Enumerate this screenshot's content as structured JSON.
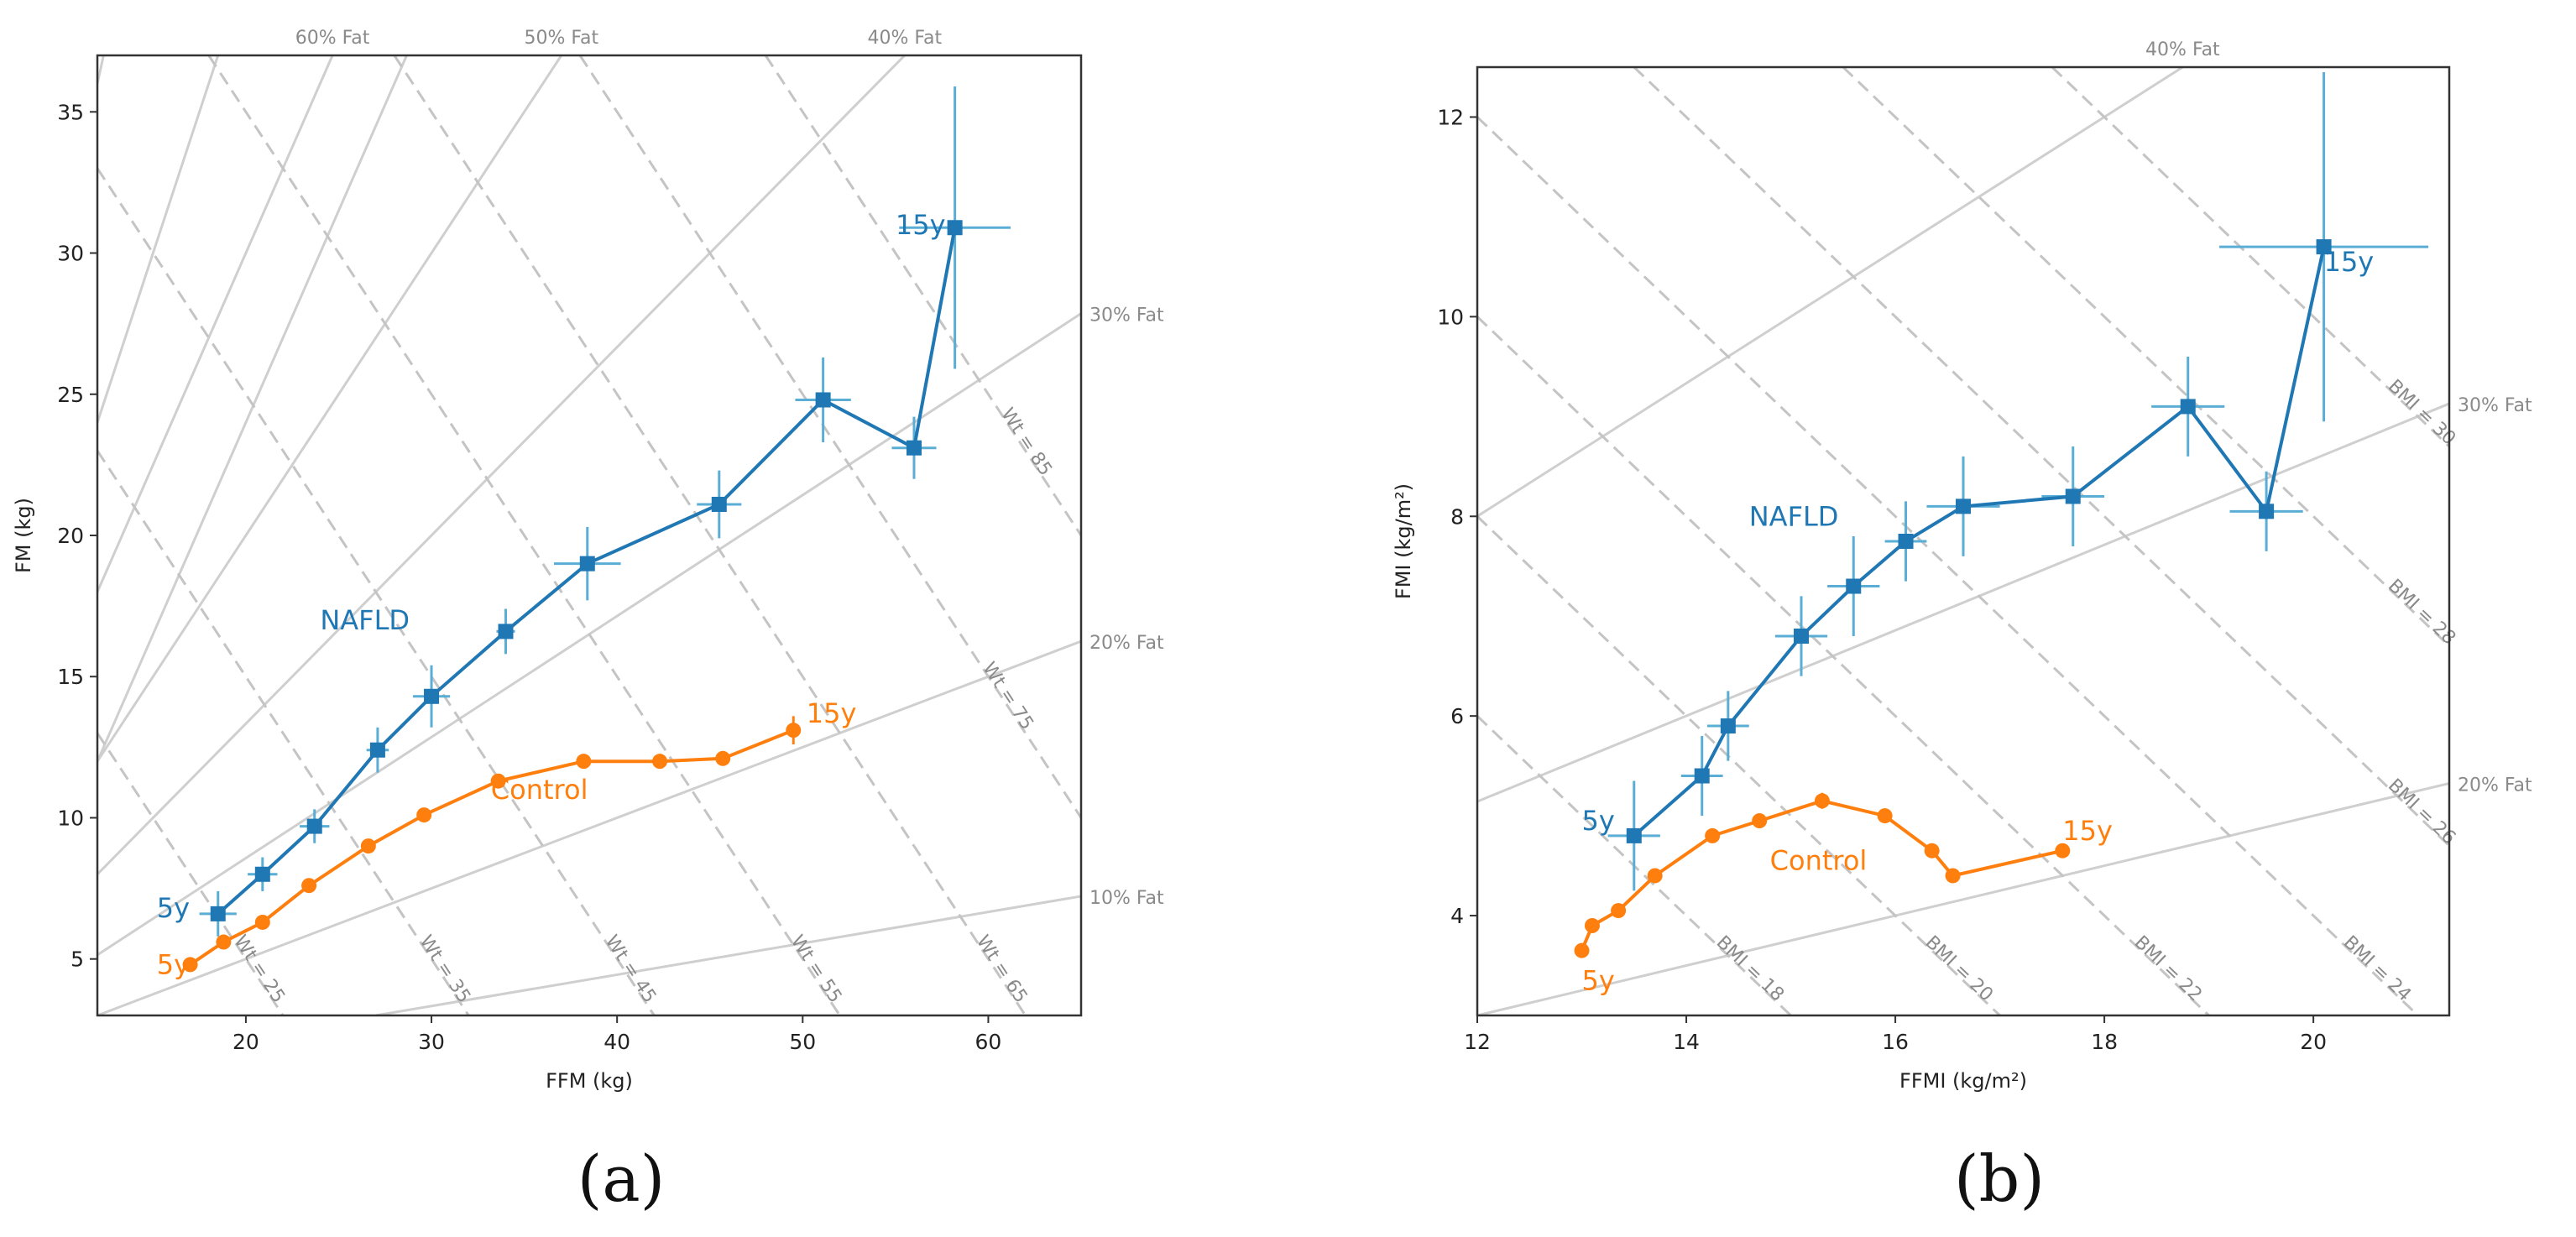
{
  "colors": {
    "nafld": "#1f77b4",
    "nafld_err": "#5aaed6",
    "control": "#ff7f0e",
    "guide": "#cfcfcf",
    "guide_dash": "#c4c4c4",
    "guide_text": "#8a8a8a",
    "axis": "#333333"
  },
  "captions": [
    "(a)",
    "(b)"
  ],
  "chart_data": [
    {
      "type": "line",
      "panel": "a",
      "xlabel": "FFM (kg)",
      "ylabel": "FM (kg)",
      "xlim": [
        12,
        65
      ],
      "ylim": [
        3,
        37
      ],
      "xticks": [
        20,
        30,
        40,
        50,
        60
      ],
      "yticks": [
        5,
        10,
        15,
        20,
        25,
        30,
        35
      ],
      "series": [
        {
          "name": "NAFLD",
          "color_key": "nafld",
          "marker": "square",
          "label": "NAFLD",
          "label_at": [
            24.0,
            17.0
          ],
          "start_label": "5y",
          "start_label_at": [
            15.2,
            6.8
          ],
          "end_label": "15y",
          "end_label_at": [
            55.0,
            31.0
          ],
          "points": [
            {
              "x": 18.5,
              "y": 6.6,
              "xerr": 1.0,
              "yerr": 0.8
            },
            {
              "x": 20.9,
              "y": 8.0,
              "xerr": 0.8,
              "yerr": 0.6
            },
            {
              "x": 23.7,
              "y": 9.7,
              "xerr": 0.8,
              "yerr": 0.6
            },
            {
              "x": 27.1,
              "y": 12.4,
              "xerr": 0.6,
              "yerr": 0.8
            },
            {
              "x": 30.0,
              "y": 14.3,
              "xerr": 1.0,
              "yerr": 1.1
            },
            {
              "x": 34.0,
              "y": 16.6,
              "xerr": 0.5,
              "yerr": 0.8
            },
            {
              "x": 38.4,
              "y": 19.0,
              "xerr": 1.8,
              "yerr": 1.3
            },
            {
              "x": 45.5,
              "y": 21.1,
              "xerr": 1.2,
              "yerr": 1.2
            },
            {
              "x": 51.1,
              "y": 24.8,
              "xerr": 1.5,
              "yerr": 1.5
            },
            {
              "x": 56.0,
              "y": 23.1,
              "xerr": 1.2,
              "yerr": 1.1
            },
            {
              "x": 58.2,
              "y": 30.9,
              "xerr": 3.0,
              "yerr": 5.0
            }
          ]
        },
        {
          "name": "Control",
          "color_key": "control",
          "marker": "circle",
          "label": "Control",
          "label_at": [
            33.2,
            11.0
          ],
          "start_label": "5y",
          "start_label_at": [
            15.2,
            4.8
          ],
          "end_label": "15y",
          "end_label_at": [
            50.2,
            13.7
          ],
          "points": [
            {
              "x": 17.0,
              "y": 4.8,
              "xerr": 0,
              "yerr": 0
            },
            {
              "x": 18.8,
              "y": 5.6,
              "xerr": 0,
              "yerr": 0
            },
            {
              "x": 20.9,
              "y": 6.3,
              "xerr": 0,
              "yerr": 0
            },
            {
              "x": 23.4,
              "y": 7.6,
              "xerr": 0,
              "yerr": 0
            },
            {
              "x": 26.6,
              "y": 9.0,
              "xerr": 0,
              "yerr": 0
            },
            {
              "x": 29.6,
              "y": 10.1,
              "xerr": 0,
              "yerr": 0
            },
            {
              "x": 33.6,
              "y": 11.3,
              "xerr": 0,
              "yerr": 0
            },
            {
              "x": 38.2,
              "y": 12.0,
              "xerr": 0,
              "yerr": 0
            },
            {
              "x": 42.3,
              "y": 12.0,
              "xerr": 0,
              "yerr": 0
            },
            {
              "x": 45.7,
              "y": 12.1,
              "xerr": 0,
              "yerr": 0
            },
            {
              "x": 49.5,
              "y": 13.1,
              "xerr": 0,
              "yerr": 0.5
            }
          ]
        }
      ],
      "fat_lines": [
        {
          "label": "60% Fat",
          "ratio": 1.5,
          "label_placement": "top"
        },
        {
          "label": "50% Fat",
          "ratio": 1.0,
          "label_placement": "top"
        },
        {
          "label": "40% Fat",
          "ratio": 0.6667,
          "label_placement": "top"
        },
        {
          "label": "30% Fat",
          "ratio": 0.4286,
          "label_placement": "right"
        },
        {
          "label": "20% Fat",
          "ratio": 0.25,
          "label_placement": "right"
        },
        {
          "label": "10% Fat",
          "ratio": 0.1111,
          "label_placement": "right"
        }
      ],
      "extra_guides": [
        {
          "ratio": 3.0,
          "intercept": 0
        },
        {
          "ratio": 2.0,
          "intercept": 0
        },
        {
          "ratio": 1.5,
          "intercept": -6
        }
      ],
      "weight_lines": [
        {
          "label": "Wt = 25",
          "value": 25,
          "label_at": 21.5
        },
        {
          "label": "Wt = 35",
          "value": 35,
          "label_at": 31.6
        },
        {
          "label": "Wt = 45",
          "value": 45,
          "label_at": 41.8
        },
        {
          "label": "Wt = 55",
          "value": 55,
          "label_at": 52.0
        },
        {
          "label": "Wt = 65",
          "value": 65,
          "label_at": 62.0
        },
        {
          "label": "Wt = 75",
          "value": 75,
          "label_at": 60.8
        },
        {
          "label": "Wt = 85",
          "value": 85,
          "label_at": 61.8
        }
      ]
    },
    {
      "type": "line",
      "panel": "b",
      "xlabel": "FFMI (kg/m²)",
      "ylabel": "FMI (kg/m²)",
      "xlim": [
        12,
        21.3
      ],
      "ylim": [
        3,
        12.5
      ],
      "xticks": [
        12,
        14,
        16,
        18,
        20
      ],
      "yticks": [
        4,
        6,
        8,
        10,
        12
      ],
      "series": [
        {
          "name": "NAFLD",
          "color_key": "nafld",
          "marker": "square",
          "label": "NAFLD",
          "label_at": [
            14.6,
            8.0
          ],
          "start_label": "5y",
          "start_label_at": [
            13.0,
            4.95
          ],
          "end_label": "15y",
          "end_label_at": [
            20.1,
            10.55
          ],
          "points": [
            {
              "x": 13.5,
              "y": 4.8,
              "xerr": 0.25,
              "yerr": 0.55
            },
            {
              "x": 14.15,
              "y": 5.4,
              "xerr": 0.2,
              "yerr": 0.4
            },
            {
              "x": 14.4,
              "y": 5.9,
              "xerr": 0.2,
              "yerr": 0.35
            },
            {
              "x": 15.1,
              "y": 6.8,
              "xerr": 0.25,
              "yerr": 0.4
            },
            {
              "x": 15.6,
              "y": 7.3,
              "xerr": 0.25,
              "yerr": 0.5
            },
            {
              "x": 16.1,
              "y": 7.75,
              "xerr": 0.2,
              "yerr": 0.4
            },
            {
              "x": 16.65,
              "y": 8.1,
              "xerr": 0.35,
              "yerr": 0.5
            },
            {
              "x": 17.7,
              "y": 8.2,
              "xerr": 0.3,
              "yerr": 0.5
            },
            {
              "x": 18.8,
              "y": 9.1,
              "xerr": 0.35,
              "yerr": 0.5
            },
            {
              "x": 19.55,
              "y": 8.05,
              "xerr": 0.35,
              "yerr": 0.4
            },
            {
              "x": 20.1,
              "y": 10.7,
              "xerr": 1.0,
              "yerr": 1.75
            }
          ]
        },
        {
          "name": "Control",
          "color_key": "control",
          "marker": "circle",
          "label": "Control",
          "label_at": [
            14.8,
            4.55
          ],
          "start_label": "5y",
          "start_label_at": [
            13.0,
            3.35
          ],
          "end_label": "15y",
          "end_label_at": [
            17.6,
            4.85
          ],
          "points": [
            {
              "x": 13.0,
              "y": 3.65,
              "xerr": 0,
              "yerr": 0
            },
            {
              "x": 13.1,
              "y": 3.9,
              "xerr": 0,
              "yerr": 0
            },
            {
              "x": 13.35,
              "y": 4.05,
              "xerr": 0,
              "yerr": 0
            },
            {
              "x": 13.7,
              "y": 4.4,
              "xerr": 0,
              "yerr": 0
            },
            {
              "x": 14.25,
              "y": 4.8,
              "xerr": 0,
              "yerr": 0
            },
            {
              "x": 14.7,
              "y": 4.95,
              "xerr": 0,
              "yerr": 0
            },
            {
              "x": 15.3,
              "y": 5.15,
              "xerr": 0,
              "yerr": 0.08
            },
            {
              "x": 15.9,
              "y": 5.0,
              "xerr": 0,
              "yerr": 0
            },
            {
              "x": 16.35,
              "y": 4.65,
              "xerr": 0,
              "yerr": 0
            },
            {
              "x": 16.55,
              "y": 4.4,
              "xerr": 0,
              "yerr": 0
            },
            {
              "x": 17.6,
              "y": 4.65,
              "xerr": 0,
              "yerr": 0
            }
          ]
        }
      ],
      "fat_lines": [
        {
          "label": "40% Fat",
          "ratio": 0.6667,
          "label_placement": "top"
        },
        {
          "label": "30% Fat",
          "ratio": 0.4286,
          "label_placement": "right"
        },
        {
          "label": "20% Fat",
          "ratio": 0.25,
          "label_placement": "right"
        }
      ],
      "extra_guides": [],
      "bmi_lines": [
        {
          "label": "BMI = 18",
          "value": 18,
          "label_at": 15.2
        },
        {
          "label": "BMI = 20",
          "value": 20,
          "label_at": 17.1
        },
        {
          "label": "BMI = 22",
          "value": 22,
          "label_at": 19.1
        },
        {
          "label": "BMI = 24",
          "value": 24,
          "label_at": 21.0
        },
        {
          "label": "BMI = 26",
          "value": 26,
          "label_at": 21.0
        },
        {
          "label": "BMI = 28",
          "value": 28,
          "label_at": 21.0
        },
        {
          "label": "BMI = 30",
          "value": 30,
          "label_at": 21.0
        }
      ]
    }
  ]
}
